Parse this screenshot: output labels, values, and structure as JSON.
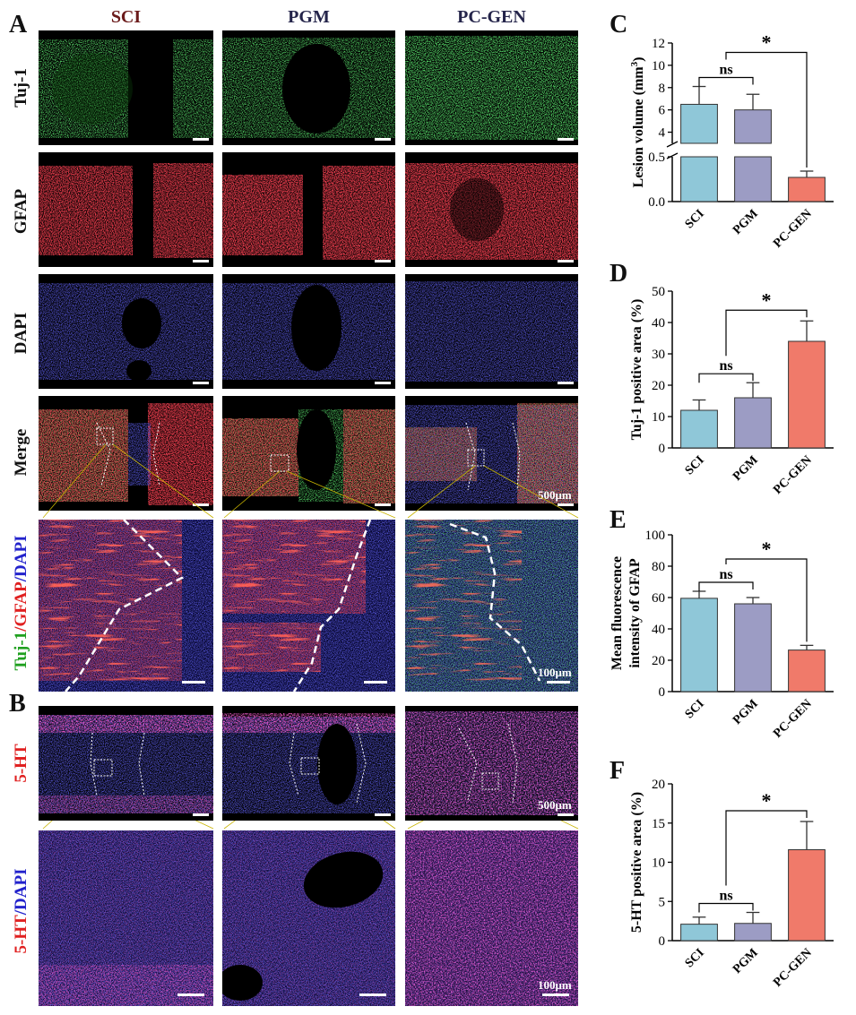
{
  "panels": {
    "A": "A",
    "B": "B",
    "C": "C",
    "D": "D",
    "E": "E",
    "F": "F"
  },
  "columns": [
    {
      "label": "SCI",
      "color": "#6b1a1a"
    },
    {
      "label": "PGM",
      "color": "#24244a"
    },
    {
      "label": "PC-GEN",
      "color": "#24244a"
    }
  ],
  "rows_A": [
    "Tuj-1",
    "GFAP",
    "DAPI",
    "Merge"
  ],
  "zoom_label_A": {
    "part1": "Tuj-1",
    "sep1": "/",
    "part2": "GFAP",
    "sep2": "/",
    "part3": "DAPI"
  },
  "row_label_B": "5-HT",
  "zoom_label_B": {
    "part1": "5-HT",
    "sep": "/",
    "part2": "DAPI"
  },
  "scalebars": {
    "merge": "500μm",
    "zoom": "100μm",
    "b_top": "500μm",
    "b_zoom": "100μm"
  },
  "colors": {
    "sci": "#8fc7d8",
    "pgm": "#9c9cc4",
    "pcgen": "#f07a6a",
    "green": "#1fa01f",
    "red": "#e02020",
    "blue": "#2222cc"
  },
  "chart_data": [
    {
      "id": "C",
      "type": "bar",
      "categories": [
        "SCI",
        "PGM",
        "PC-GEN"
      ],
      "values": [
        6.5,
        6.0,
        0.27
      ],
      "errors": [
        1.6,
        1.4,
        0.07
      ],
      "ylabel": "Lesion volume (mm³)",
      "ylabel_main": "Lesion volume (mm",
      "ylabel_sup": "3",
      "ylabel_end": ")",
      "axis_break": true,
      "ylim_lower": [
        0,
        0.5
      ],
      "ylim_upper": [
        3,
        12
      ],
      "yticks_lower": [
        "0.0",
        "0.5"
      ],
      "yticks_upper": [
        "4",
        "6",
        "8",
        "10",
        "12"
      ],
      "annotations": [
        {
          "text": "ns",
          "between": [
            "SCI",
            "PGM"
          ]
        },
        {
          "text": "*",
          "between": [
            "PGM",
            "PC-GEN"
          ]
        }
      ]
    },
    {
      "id": "D",
      "type": "bar",
      "categories": [
        "SCI",
        "PGM",
        "PC-GEN"
      ],
      "values": [
        12,
        16,
        34
      ],
      "errors": [
        3.3,
        4.8,
        6.5
      ],
      "ylabel": "Tuj-1 positive area (%)",
      "ylim": [
        0,
        50
      ],
      "yticks": [
        "0",
        "10",
        "20",
        "30",
        "40",
        "50"
      ],
      "annotations": [
        {
          "text": "ns",
          "between": [
            "SCI",
            "PGM"
          ]
        },
        {
          "text": "*",
          "between": [
            "PGM",
            "PC-GEN"
          ]
        }
      ]
    },
    {
      "id": "E",
      "type": "bar",
      "categories": [
        "SCI",
        "PGM",
        "PC-GEN"
      ],
      "values": [
        59.5,
        56,
        26.5
      ],
      "errors": [
        4.5,
        4,
        3
      ],
      "ylabel": "Mean fluorescence intensity of GFAP",
      "ylabel_line1": "Mean fluorescence",
      "ylabel_line2": "intensity of GFAP",
      "ylim": [
        0,
        100
      ],
      "yticks": [
        "0",
        "20",
        "40",
        "60",
        "80",
        "100"
      ],
      "annotations": [
        {
          "text": "ns",
          "between": [
            "SCI",
            "PGM"
          ]
        },
        {
          "text": "*",
          "between": [
            "PGM",
            "PC-GEN"
          ]
        }
      ]
    },
    {
      "id": "F",
      "type": "bar",
      "categories": [
        "SCI",
        "PGM",
        "PC-GEN"
      ],
      "values": [
        2.1,
        2.2,
        11.6
      ],
      "errors": [
        0.9,
        1.4,
        3.6
      ],
      "ylabel": "5-HT positive area (%)",
      "ylim": [
        0,
        20
      ],
      "yticks": [
        "0",
        "5",
        "10",
        "15",
        "20"
      ],
      "annotations": [
        {
          "text": "ns",
          "between": [
            "SCI",
            "PGM"
          ]
        },
        {
          "text": "*",
          "between": [
            "PGM",
            "PC-GEN"
          ]
        }
      ]
    }
  ]
}
